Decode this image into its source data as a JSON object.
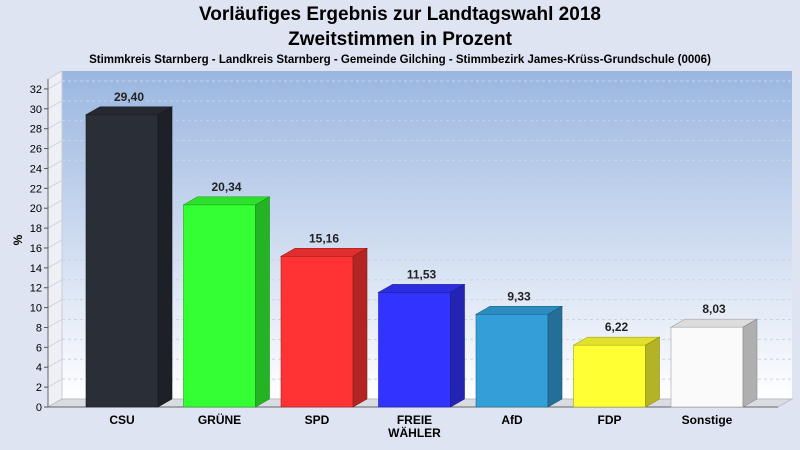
{
  "header": {
    "title_line1": "Vorläufiges Ergebnis zur Landtagswahl 2018",
    "title_line2": "Zweitstimmen in Prozent",
    "subtitle": "Stimmkreis Starnberg - Landkreis Starnberg - Gemeinde Gilching - Stimmbezirk James-Krüss-Grundschule (0006)"
  },
  "chart_data": {
    "type": "bar",
    "title": "Vorläufiges Ergebnis zur Landtagswahl 2018 Zweitstimmen in Prozent",
    "subtitle": "Stimmkreis Starnberg - Landkreis Starnberg - Gemeinde Gilching - Stimmbezirk James-Krüss-Grundschule (0006)",
    "ylabel": "%",
    "xlabel": "",
    "ylim": [
      0,
      33
    ],
    "yticks": [
      0,
      2,
      4,
      6,
      8,
      10,
      12,
      14,
      16,
      18,
      20,
      22,
      24,
      26,
      28,
      30,
      32
    ],
    "grid": true,
    "categories": [
      [
        "CSU"
      ],
      [
        "GRÜNE"
      ],
      [
        "SPD"
      ],
      [
        "FREIE",
        "WÄHLER"
      ],
      [
        "AfD"
      ],
      [
        "FDP"
      ],
      [
        "Sonstige"
      ]
    ],
    "values": [
      29.4,
      20.34,
      15.16,
      11.53,
      9.33,
      6.22,
      8.03
    ],
    "value_labels": [
      "29,40",
      "20,34",
      "15,16",
      "11,53",
      "9,33",
      "6,22",
      "8,03"
    ],
    "colors": [
      "#2a2e36",
      "#33ff33",
      "#ff3333",
      "#3333ff",
      "#339fd9",
      "#ffff33",
      "#fafafa"
    ]
  }
}
